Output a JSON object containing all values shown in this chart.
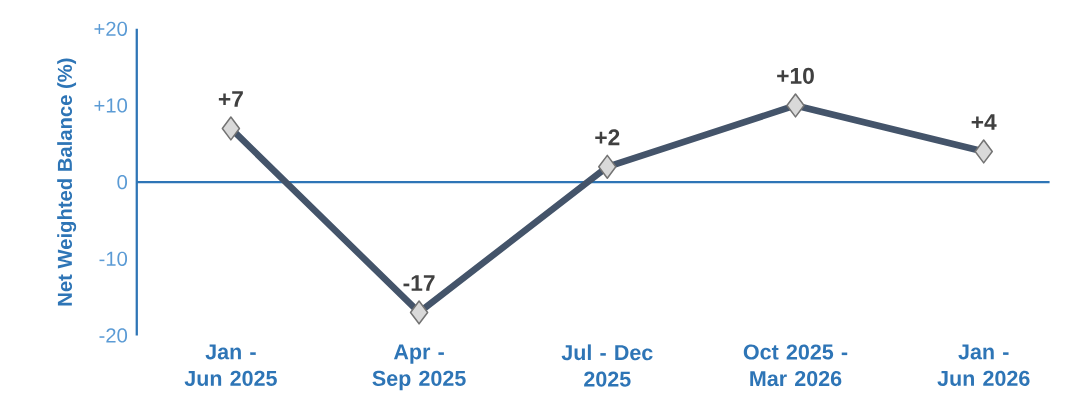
{
  "chart_data": {
    "type": "line",
    "ylabel": "Net Weighted Balance (%)",
    "categories": [
      "Jan - Jun 2025",
      "Apr - Sep 2025",
      "Jul - Dec 2025",
      "Oct 2025 - Mar 2026",
      "Jan - Jun 2026"
    ],
    "series": [
      {
        "color": "#44546a",
        "values": [
          7,
          -17,
          2,
          10,
          4
        ],
        "value_labels": [
          "+7",
          "-17",
          "+2",
          "+10",
          "+4"
        ]
      }
    ],
    "ylim": [
      -20,
      20
    ],
    "yticks": [
      {
        "value": 20,
        "label": "+20"
      },
      {
        "value": 10,
        "label": "+10"
      },
      0,
      -10,
      -20
    ],
    "ref_lines": [
      {
        "axis": "y",
        "value": 0,
        "color": "#2e75b6"
      }
    ],
    "marker": "diamond",
    "line_style": "solid",
    "grid": false
  }
}
